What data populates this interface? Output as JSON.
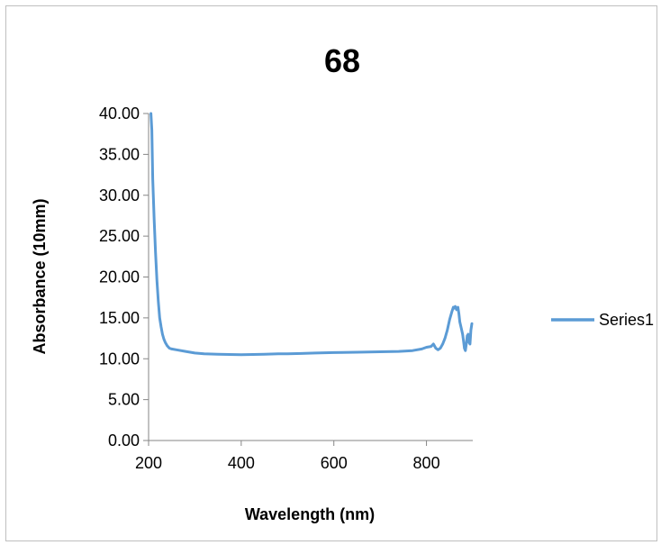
{
  "chart_data": {
    "type": "line",
    "title": "68",
    "xlabel": "Wavelength (nm)",
    "ylabel": "Absorbance (10mm)",
    "xlim": [
      200,
      900
    ],
    "ylim": [
      0,
      40
    ],
    "xticks": [
      200,
      400,
      600,
      800
    ],
    "yticks": [
      0,
      5,
      10,
      15,
      20,
      25,
      30,
      35,
      40
    ],
    "xtick_labels": [
      "200",
      "400",
      "600",
      "800"
    ],
    "ytick_labels": [
      "0.00",
      "5.00",
      "10.00",
      "15.00",
      "20.00",
      "25.00",
      "30.00",
      "35.00",
      "40.00"
    ],
    "grid": false,
    "legend_position": "right",
    "series": [
      {
        "name": "Series1",
        "color": "#5b9bd5",
        "x": [
          205,
          207,
          209,
          212,
          215,
          218,
          221,
          224,
          227,
          230,
          233,
          236,
          240,
          245,
          250,
          260,
          280,
          300,
          320,
          350,
          400,
          450,
          480,
          500,
          530,
          560,
          600,
          650,
          700,
          740,
          770,
          790,
          800,
          810,
          815,
          820,
          825,
          830,
          835,
          840,
          845,
          850,
          855,
          858,
          860,
          862,
          865,
          868,
          870,
          872,
          875,
          878,
          880,
          882,
          884,
          886,
          888,
          890,
          892,
          894,
          896,
          898
        ],
        "y": [
          40,
          38,
          32,
          27,
          23,
          19.5,
          17,
          15,
          13.9,
          13,
          12.4,
          12,
          11.6,
          11.3,
          11.2,
          11.1,
          10.9,
          10.7,
          10.6,
          10.55,
          10.5,
          10.55,
          10.6,
          10.6,
          10.65,
          10.7,
          10.75,
          10.8,
          10.85,
          10.9,
          11.0,
          11.2,
          11.4,
          11.5,
          11.8,
          11.3,
          11.1,
          11.3,
          11.8,
          12.5,
          13.5,
          14.8,
          15.8,
          16.3,
          16.2,
          16.4,
          16.0,
          16.3,
          15.5,
          14.5,
          13.8,
          13.0,
          12.2,
          11.3,
          11.0,
          11.8,
          12.8,
          13.0,
          12.0,
          11.8,
          13.5,
          14.3
        ]
      }
    ]
  }
}
